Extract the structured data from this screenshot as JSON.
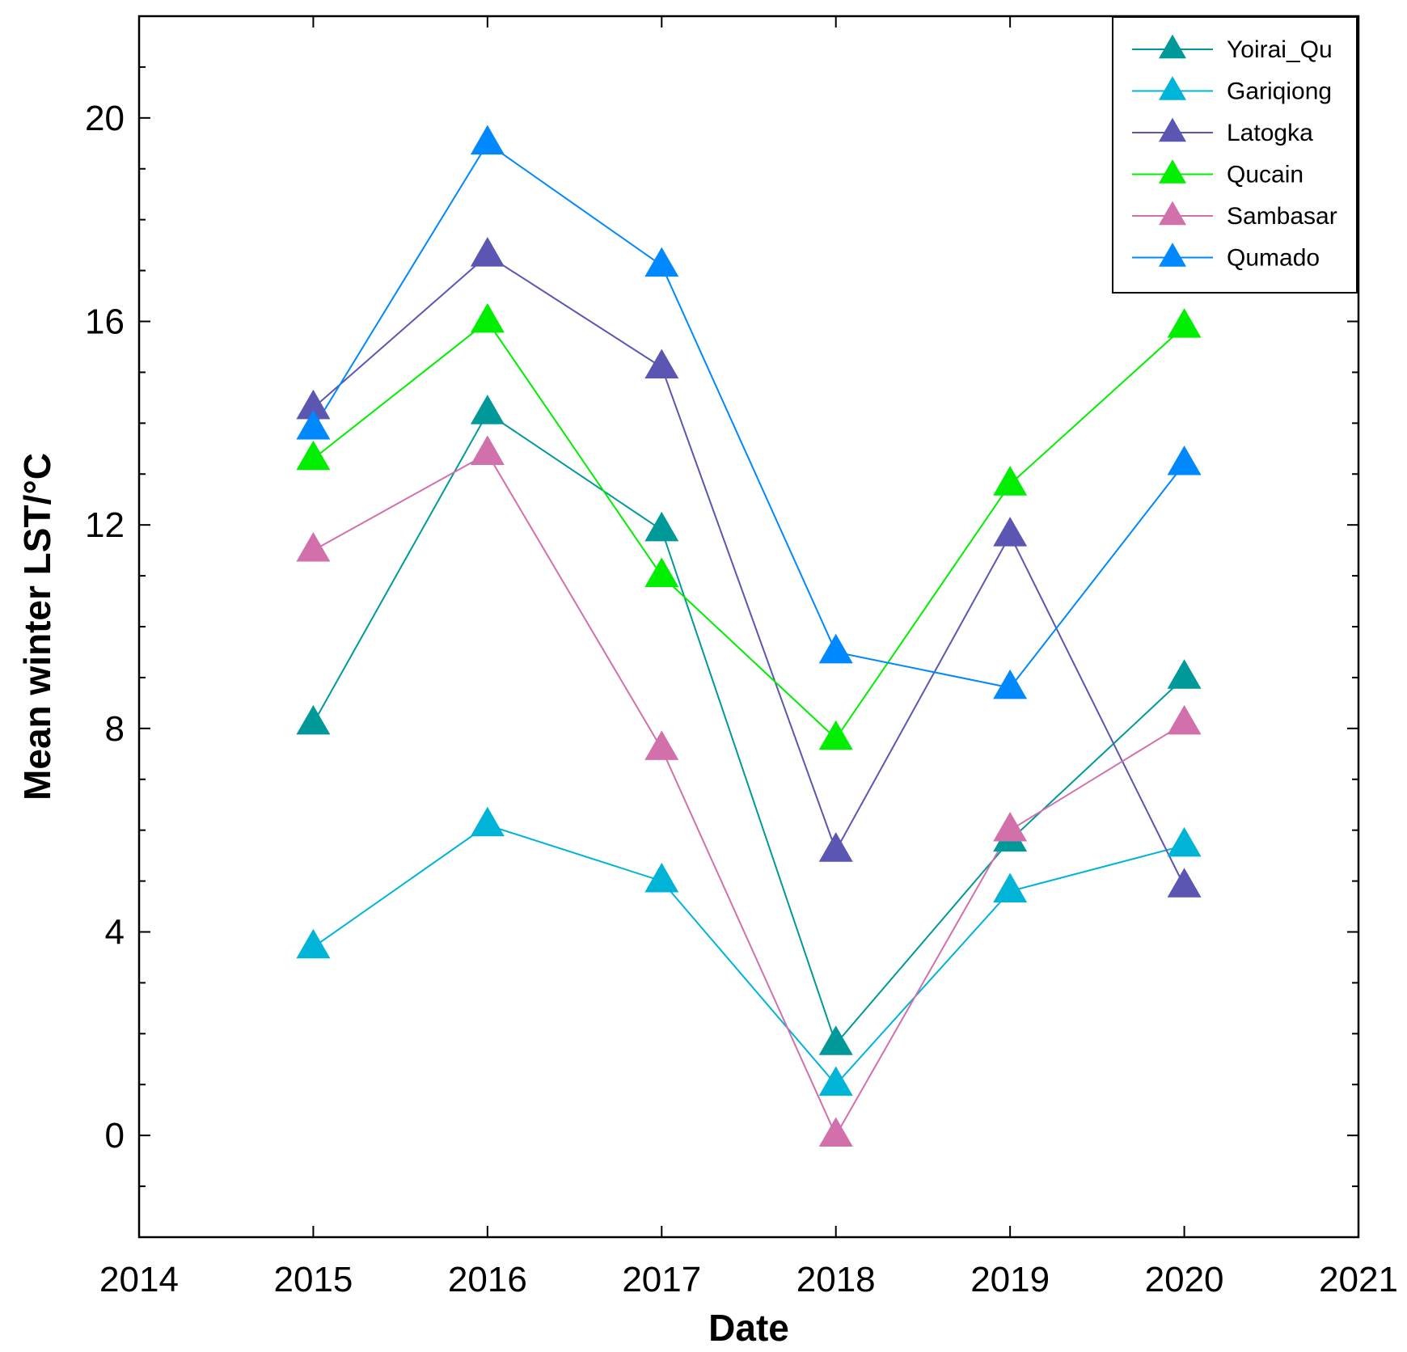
{
  "chart_data": {
    "type": "line",
    "title": "",
    "xlabel": "Date",
    "ylabel": "Mean winter LST/°C",
    "xlim": [
      2014,
      2021
    ],
    "ylim": [
      -2,
      22
    ],
    "x_ticks": [
      "2014",
      "2015",
      "2016",
      "2017",
      "2018",
      "2019",
      "2020",
      "2021"
    ],
    "x_tick_values": [
      2014,
      2015,
      2016,
      2017,
      2018,
      2019,
      2020,
      2021
    ],
    "y_ticks": [
      "0",
      "4",
      "8",
      "12",
      "16",
      "20"
    ],
    "y_tick_values": [
      0,
      4,
      8,
      12,
      16,
      20
    ],
    "grid": false,
    "legend_position": "top-right",
    "marker": "triangle",
    "x": [
      2015,
      2016,
      2017,
      2018,
      2019,
      2020
    ],
    "series": [
      {
        "name": "Yoirai_Qu",
        "color": "#00999a",
        "values": [
          8.1,
          14.2,
          11.9,
          1.8,
          5.8,
          9.0
        ]
      },
      {
        "name": "Gariqiong",
        "color": "#00b4d8",
        "values": [
          3.7,
          6.1,
          5.0,
          1.0,
          4.8,
          5.7
        ]
      },
      {
        "name": "Latogka",
        "color": "#5a56b2",
        "values": [
          14.3,
          17.3,
          15.1,
          5.6,
          11.8,
          4.9
        ]
      },
      {
        "name": "Qucain",
        "color": "#00ee00",
        "values": [
          13.3,
          16.0,
          11.0,
          7.8,
          12.8,
          15.9
        ]
      },
      {
        "name": "Sambasar",
        "color": "#d170ab",
        "values": [
          11.5,
          13.4,
          7.6,
          0.0,
          6.0,
          8.1
        ]
      },
      {
        "name": "Qumado",
        "color": "#0088ff",
        "values": [
          13.9,
          19.5,
          17.1,
          9.5,
          8.8,
          13.2
        ]
      }
    ]
  }
}
